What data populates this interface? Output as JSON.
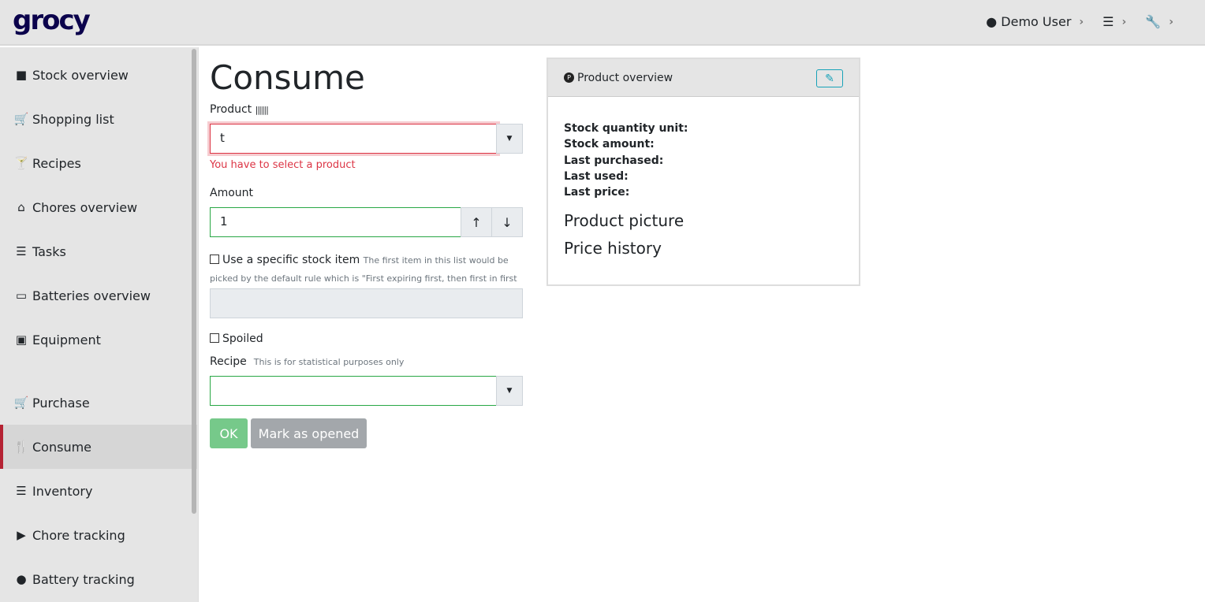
{
  "app": {
    "logo": "grocy"
  },
  "topbar": {
    "user": "Demo User",
    "chevron": "›"
  },
  "sidebar": {
    "items": [
      {
        "label": "Stock overview",
        "icon": "box-icon",
        "glyph": "■"
      },
      {
        "label": "Shopping list",
        "icon": "cart-icon",
        "glyph": "🛒"
      },
      {
        "label": "Recipes",
        "icon": "cocktail-icon",
        "glyph": "🍸"
      },
      {
        "label": "Chores overview",
        "icon": "home-icon",
        "glyph": "⌂"
      },
      {
        "label": "Tasks",
        "icon": "tasks-icon",
        "glyph": "☰"
      },
      {
        "label": "Batteries overview",
        "icon": "battery-icon",
        "glyph": "▭"
      },
      {
        "label": "Equipment",
        "icon": "toolbox-icon",
        "glyph": "▣"
      },
      {
        "label": "Purchase",
        "icon": "cart-icon",
        "glyph": "🛒"
      },
      {
        "label": "Consume",
        "icon": "utensils-icon",
        "glyph": "🍴",
        "active": true
      },
      {
        "label": "Inventory",
        "icon": "list-icon",
        "glyph": "☰"
      },
      {
        "label": "Chore tracking",
        "icon": "play-icon",
        "glyph": "▶"
      },
      {
        "label": "Battery tracking",
        "icon": "fire-icon",
        "glyph": "●"
      }
    ]
  },
  "main": {
    "title": "Consume",
    "product_label": "Product",
    "product_value": "t",
    "product_error": "You have to select a product",
    "amount_label": "Amount",
    "amount_value": "1",
    "specific_stock_label": "Use a specific stock item",
    "specific_stock_hint": "The first item in this list would be picked by the default rule which is \"First expiring first, then first in first out\"",
    "spoiled_label": "Spoiled",
    "recipe_label": "Recipe",
    "recipe_hint": "This is for statistical purposes only",
    "ok_label": "OK",
    "mark_opened_label": "Mark as opened"
  },
  "card": {
    "title": "Product overview",
    "fields": [
      "Stock quantity unit:",
      "Stock amount:",
      "Last purchased:",
      "Last used:",
      "Last price:"
    ],
    "product_picture": "Product picture",
    "price_history": "Price history"
  },
  "colors": {
    "accent": "#b52233",
    "ok": "#76c98a",
    "secondary": "#a3a7ab",
    "error": "#dc3545",
    "valid": "#28a745"
  }
}
